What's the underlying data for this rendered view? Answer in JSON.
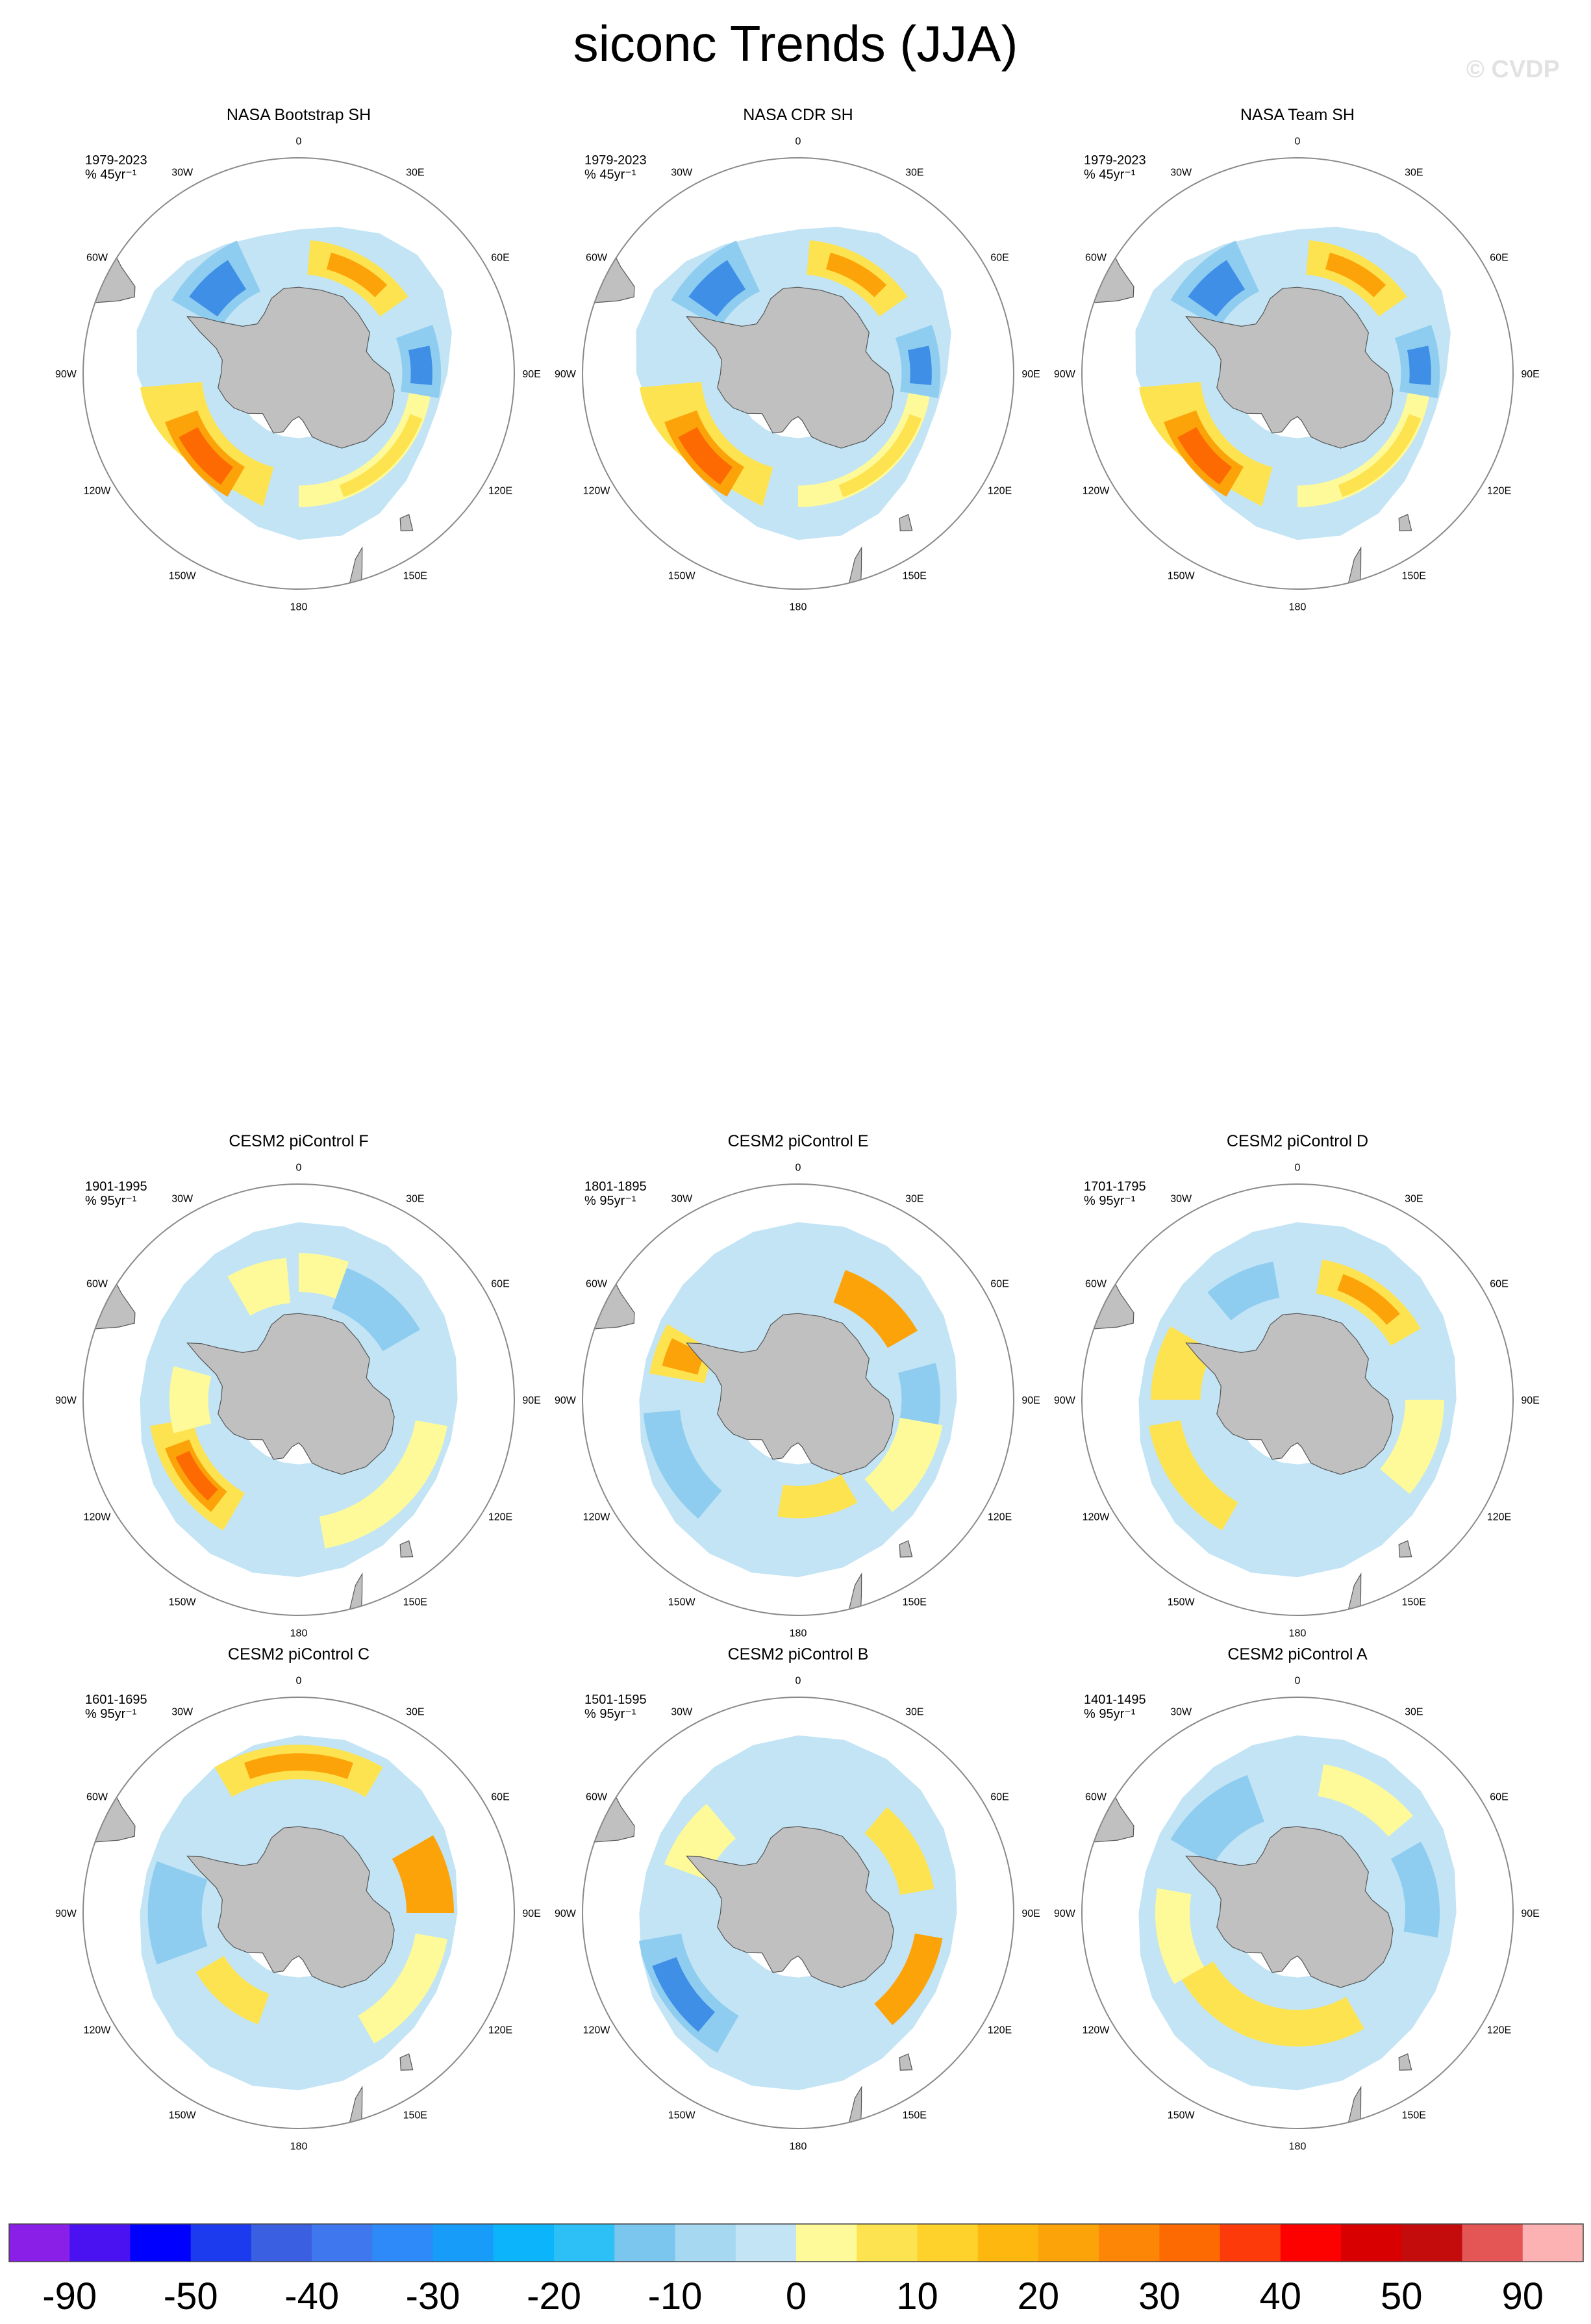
{
  "title": "siconc Trends (JJA)",
  "watermark": "© CVDP",
  "panels": [
    {
      "title": "NASA Bootstrap SH",
      "period": "1979-2023",
      "units": "% 45yr⁻¹",
      "style": "obs1"
    },
    {
      "title": "NASA CDR SH",
      "period": "1979-2023",
      "units": "% 45yr⁻¹",
      "style": "obs2"
    },
    {
      "title": "NASA Team SH",
      "period": "1979-2023",
      "units": "% 45yr⁻¹",
      "style": "obs3"
    },
    {
      "title": "CESM2 piControl F",
      "period": "1901-1995",
      "units": "% 95yr⁻¹",
      "style": "F"
    },
    {
      "title": "CESM2 piControl E",
      "period": "1801-1895",
      "units": "% 95yr⁻¹",
      "style": "E"
    },
    {
      "title": "CESM2 piControl D",
      "period": "1701-1795",
      "units": "% 95yr⁻¹",
      "style": "D"
    },
    {
      "title": "CESM2 piControl C",
      "period": "1601-1695",
      "units": "% 95yr⁻¹",
      "style": "C"
    },
    {
      "title": "CESM2 piControl B",
      "period": "1501-1595",
      "units": "% 95yr⁻¹",
      "style": "B"
    },
    {
      "title": "CESM2 piControl A",
      "period": "1401-1495",
      "units": "% 95yr⁻¹",
      "style": "A"
    }
  ],
  "longitude_labels": [
    "0",
    "30E",
    "60E",
    "90E",
    "120E",
    "150E",
    "180",
    "150W",
    "120W",
    "90W",
    "60W",
    "30W"
  ],
  "colorbar": {
    "colors": [
      "#8a1fe8",
      "#4a12f0",
      "#0000ff",
      "#1c3bee",
      "#3a5fe0",
      "#3f78ee",
      "#2e8af8",
      "#189cf9",
      "#0cb4fc",
      "#2dc0f6",
      "#7ac6ee",
      "#a6d8f2",
      "#c2e4f5",
      "#fefa9a",
      "#fde34f",
      "#fed22a",
      "#fdb70f",
      "#fda30a",
      "#fd8606",
      "#fd6a02",
      "#fd3a0a",
      "#fd0000",
      "#d80000",
      "#c40c0c",
      "#e45656",
      "#fcb2b2"
    ],
    "labels": [
      "-90",
      "-50",
      "-40",
      "-30",
      "-20",
      "-10",
      "0",
      "10",
      "20",
      "30",
      "40",
      "50",
      "90"
    ]
  },
  "colors": {
    "land": "#c0c0c0",
    "blue_light": "#c2e4f5",
    "blue_mid": "#8fcdf0",
    "blue_strong": "#3f8fe6",
    "yellow_light": "#fefa9a",
    "yellow_mid": "#fde34f",
    "orange": "#fda30a",
    "orange_red": "#fd6a02"
  }
}
